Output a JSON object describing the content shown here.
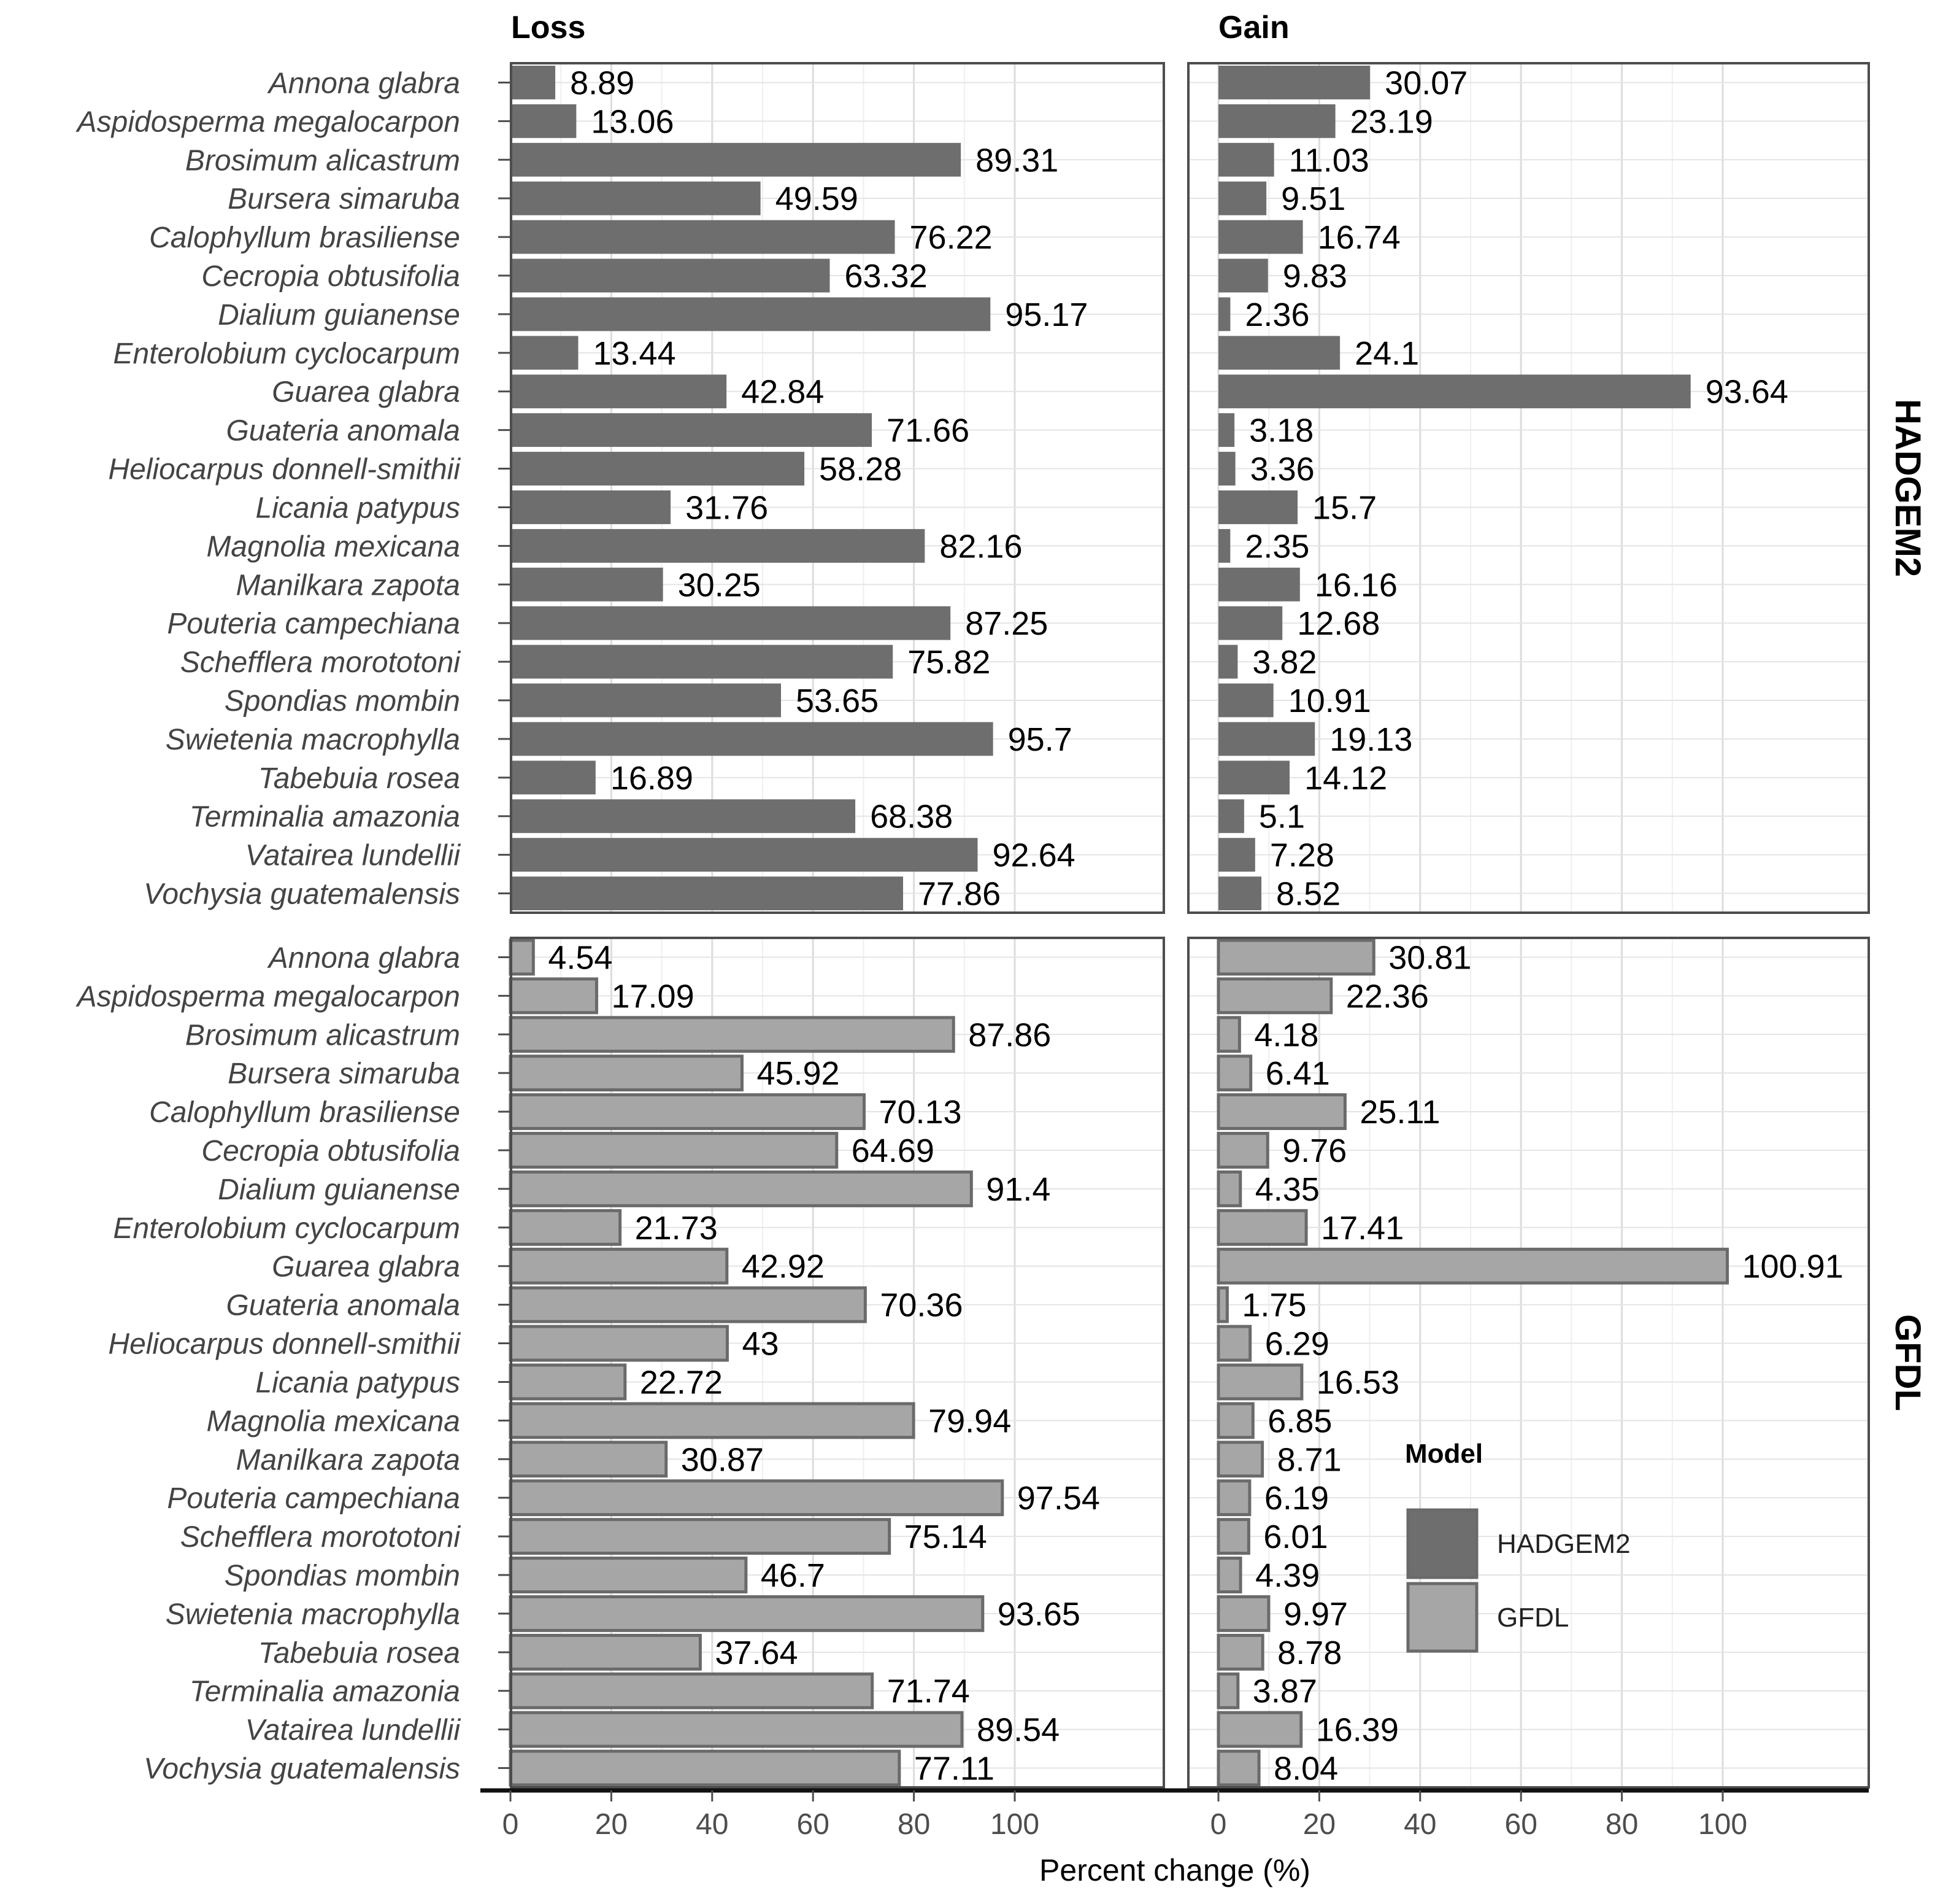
{
  "chart_data": {
    "type": "bar",
    "orientation": "horizontal",
    "facet_columns": [
      "Loss",
      "Gain"
    ],
    "facet_rows": [
      "HADGEM2",
      "GFDL"
    ],
    "categories": [
      "Annona glabra",
      "Aspidosperma megalocarpon",
      "Brosimum alicastrum",
      "Bursera simaruba",
      "Calophyllum brasiliense",
      "Cecropia obtusifolia",
      "Dialium guianense",
      "Enterolobium cyclocarpum",
      "Guarea glabra",
      "Guateria anomala",
      "Heliocarpus donnell-smithii",
      "Licania patypus",
      "Magnolia mexicana",
      "Manilkara zapota",
      "Pouteria campechiana",
      "Schefflera morototoni",
      "Spondias mombin",
      "Swietenia macrophylla",
      "Tabebuia rosea",
      "Terminalia amazonia",
      "Vatairea lundellii",
      "Vochysia guatemalensis"
    ],
    "series": [
      {
        "name": "HADGEM2",
        "color": "#6e6e6e",
        "loss": [
          8.89,
          13.06,
          89.31,
          49.59,
          76.22,
          63.32,
          95.17,
          13.44,
          42.84,
          71.66,
          58.28,
          31.76,
          82.16,
          30.25,
          87.25,
          75.82,
          53.65,
          95.7,
          16.89,
          68.38,
          92.64,
          77.86
        ],
        "loss_labels": [
          "8.89",
          "13.06",
          "89.31",
          "49.59",
          "76.22",
          "63.32",
          "95.17",
          "13.44",
          "42.84",
          "71.66",
          "58.28",
          "31.76",
          "82.16",
          "30.25",
          "87.25",
          "75.82",
          "53.65",
          "95.7",
          "16.89",
          "68.38",
          "92.64",
          "77.86"
        ],
        "gain": [
          30.07,
          23.19,
          11.03,
          9.51,
          16.74,
          9.83,
          2.36,
          24.1,
          93.64,
          3.18,
          3.36,
          15.7,
          2.35,
          16.16,
          12.68,
          3.82,
          10.91,
          19.13,
          14.12,
          5.1,
          7.28,
          8.52
        ],
        "gain_labels": [
          "30.07",
          "23.19",
          "11.03",
          "9.51",
          "16.74",
          "9.83",
          "2.36",
          "24.1",
          "93.64",
          "3.18",
          "3.36",
          "15.7",
          "2.35",
          "16.16",
          "12.68",
          "3.82",
          "10.91",
          "19.13",
          "14.12",
          "5.1",
          "7.28",
          "8.52"
        ]
      },
      {
        "name": "GFDL",
        "color": "#a6a6a6",
        "loss": [
          4.54,
          17.09,
          87.86,
          45.92,
          70.13,
          64.69,
          91.4,
          21.73,
          42.92,
          70.36,
          43,
          22.72,
          79.94,
          30.87,
          97.54,
          75.14,
          46.7,
          93.65,
          37.64,
          71.74,
          89.54,
          77.11
        ],
        "loss_labels": [
          "4.54",
          "17.09",
          "87.86",
          "45.92",
          "70.13",
          "64.69",
          "91.4",
          "21.73",
          "42.92",
          "70.36",
          "43",
          "22.72",
          "79.94",
          "30.87",
          "97.54",
          "75.14",
          "46.7",
          "93.65",
          "37.64",
          "71.74",
          "89.54",
          "77.11"
        ],
        "gain": [
          30.81,
          22.36,
          4.18,
          6.41,
          25.11,
          9.76,
          4.35,
          17.41,
          100.91,
          1.75,
          6.29,
          16.53,
          6.85,
          8.71,
          6.19,
          6.01,
          4.39,
          9.97,
          8.78,
          3.87,
          16.39,
          8.04
        ],
        "gain_labels": [
          "30.81",
          "22.36",
          "4.18",
          "6.41",
          "25.11",
          "9.76",
          "4.35",
          "17.41",
          "100.91",
          "1.75",
          "6.29",
          "16.53",
          "6.85",
          "8.71",
          "6.19",
          "6.01",
          "4.39",
          "9.97",
          "8.78",
          "3.87",
          "16.39",
          "8.04"
        ]
      }
    ],
    "xlabel": "Percent change (%)",
    "x_ticks": [
      "0",
      "20",
      "40",
      "60",
      "80",
      "100"
    ],
    "xlim": [
      0,
      125
    ],
    "legend": {
      "title": "Model",
      "entries": [
        "HADGEM2",
        "GFDL"
      ],
      "placement": "inside bottom-right panel"
    },
    "grid": true
  }
}
